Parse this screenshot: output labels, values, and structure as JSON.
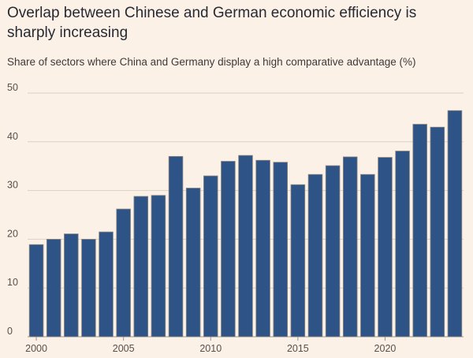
{
  "chart_data": {
    "type": "bar",
    "title": "Overlap between Chinese and German economic efficiency is sharply increasing",
    "subtitle": "Share of sectors where China and Germany display a high comparative advantage (%)",
    "xlabel": "",
    "ylabel": "",
    "categories": [
      2000,
      2001,
      2002,
      2003,
      2004,
      2005,
      2006,
      2007,
      2008,
      2009,
      2010,
      2011,
      2012,
      2013,
      2014,
      2015,
      2016,
      2017,
      2018,
      2019,
      2020,
      2021,
      2022,
      2023,
      2024
    ],
    "values": [
      18.9,
      20.0,
      21.1,
      20.0,
      21.5,
      26.2,
      28.8,
      29.0,
      37.0,
      30.5,
      33.0,
      36.0,
      37.2,
      36.2,
      35.8,
      31.2,
      33.3,
      35.1,
      36.9,
      33.3,
      36.8,
      38.1,
      43.6,
      43.0,
      46.4
    ],
    "ylim": [
      0,
      50
    ],
    "yticks": [
      0,
      10,
      20,
      30,
      40,
      50
    ],
    "xticks": [
      2000,
      2005,
      2010,
      2015,
      2020
    ],
    "grid": true,
    "colors": {
      "bar": "#2e5386",
      "bar_outline": "#8a8580",
      "grid": "#d9cfc6",
      "background": "#fcf1e7"
    }
  }
}
